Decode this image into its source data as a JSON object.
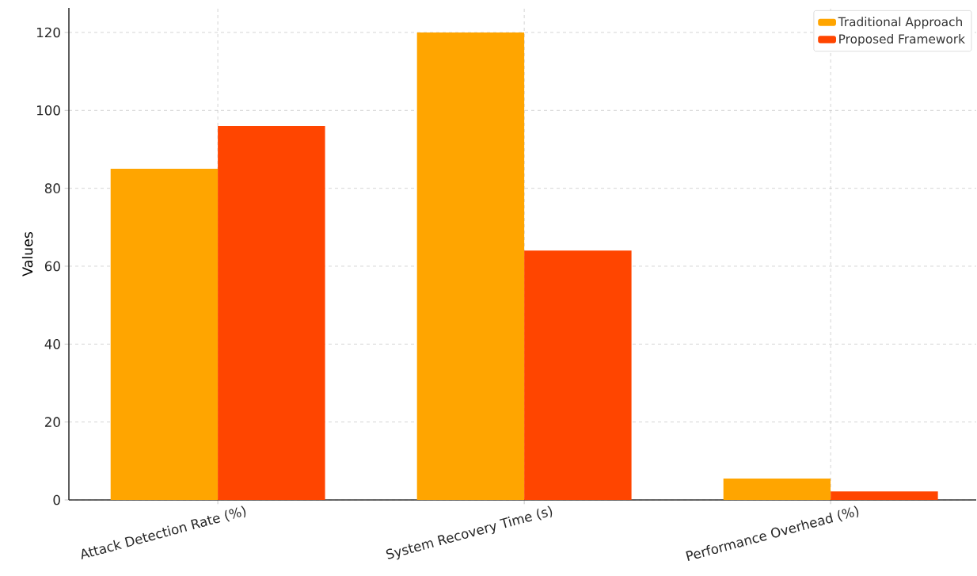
{
  "chart_data": {
    "type": "bar",
    "ylabel": "Values",
    "categories": [
      "Attack Detection Rate (%)",
      "System Recovery Time (s)",
      "Performance Overhead (%)"
    ],
    "series": [
      {
        "name": "Traditional Approach",
        "color": "#ffa500",
        "values": [
          85,
          120,
          5.5
        ]
      },
      {
        "name": "Proposed Framework",
        "color": "#ff4500",
        "values": [
          96,
          64,
          2.2
        ]
      }
    ],
    "ylim": [
      0,
      126.3
    ],
    "yticks": [
      0,
      20,
      40,
      60,
      80,
      100,
      120
    ],
    "grid": true,
    "legend": "top right"
  }
}
